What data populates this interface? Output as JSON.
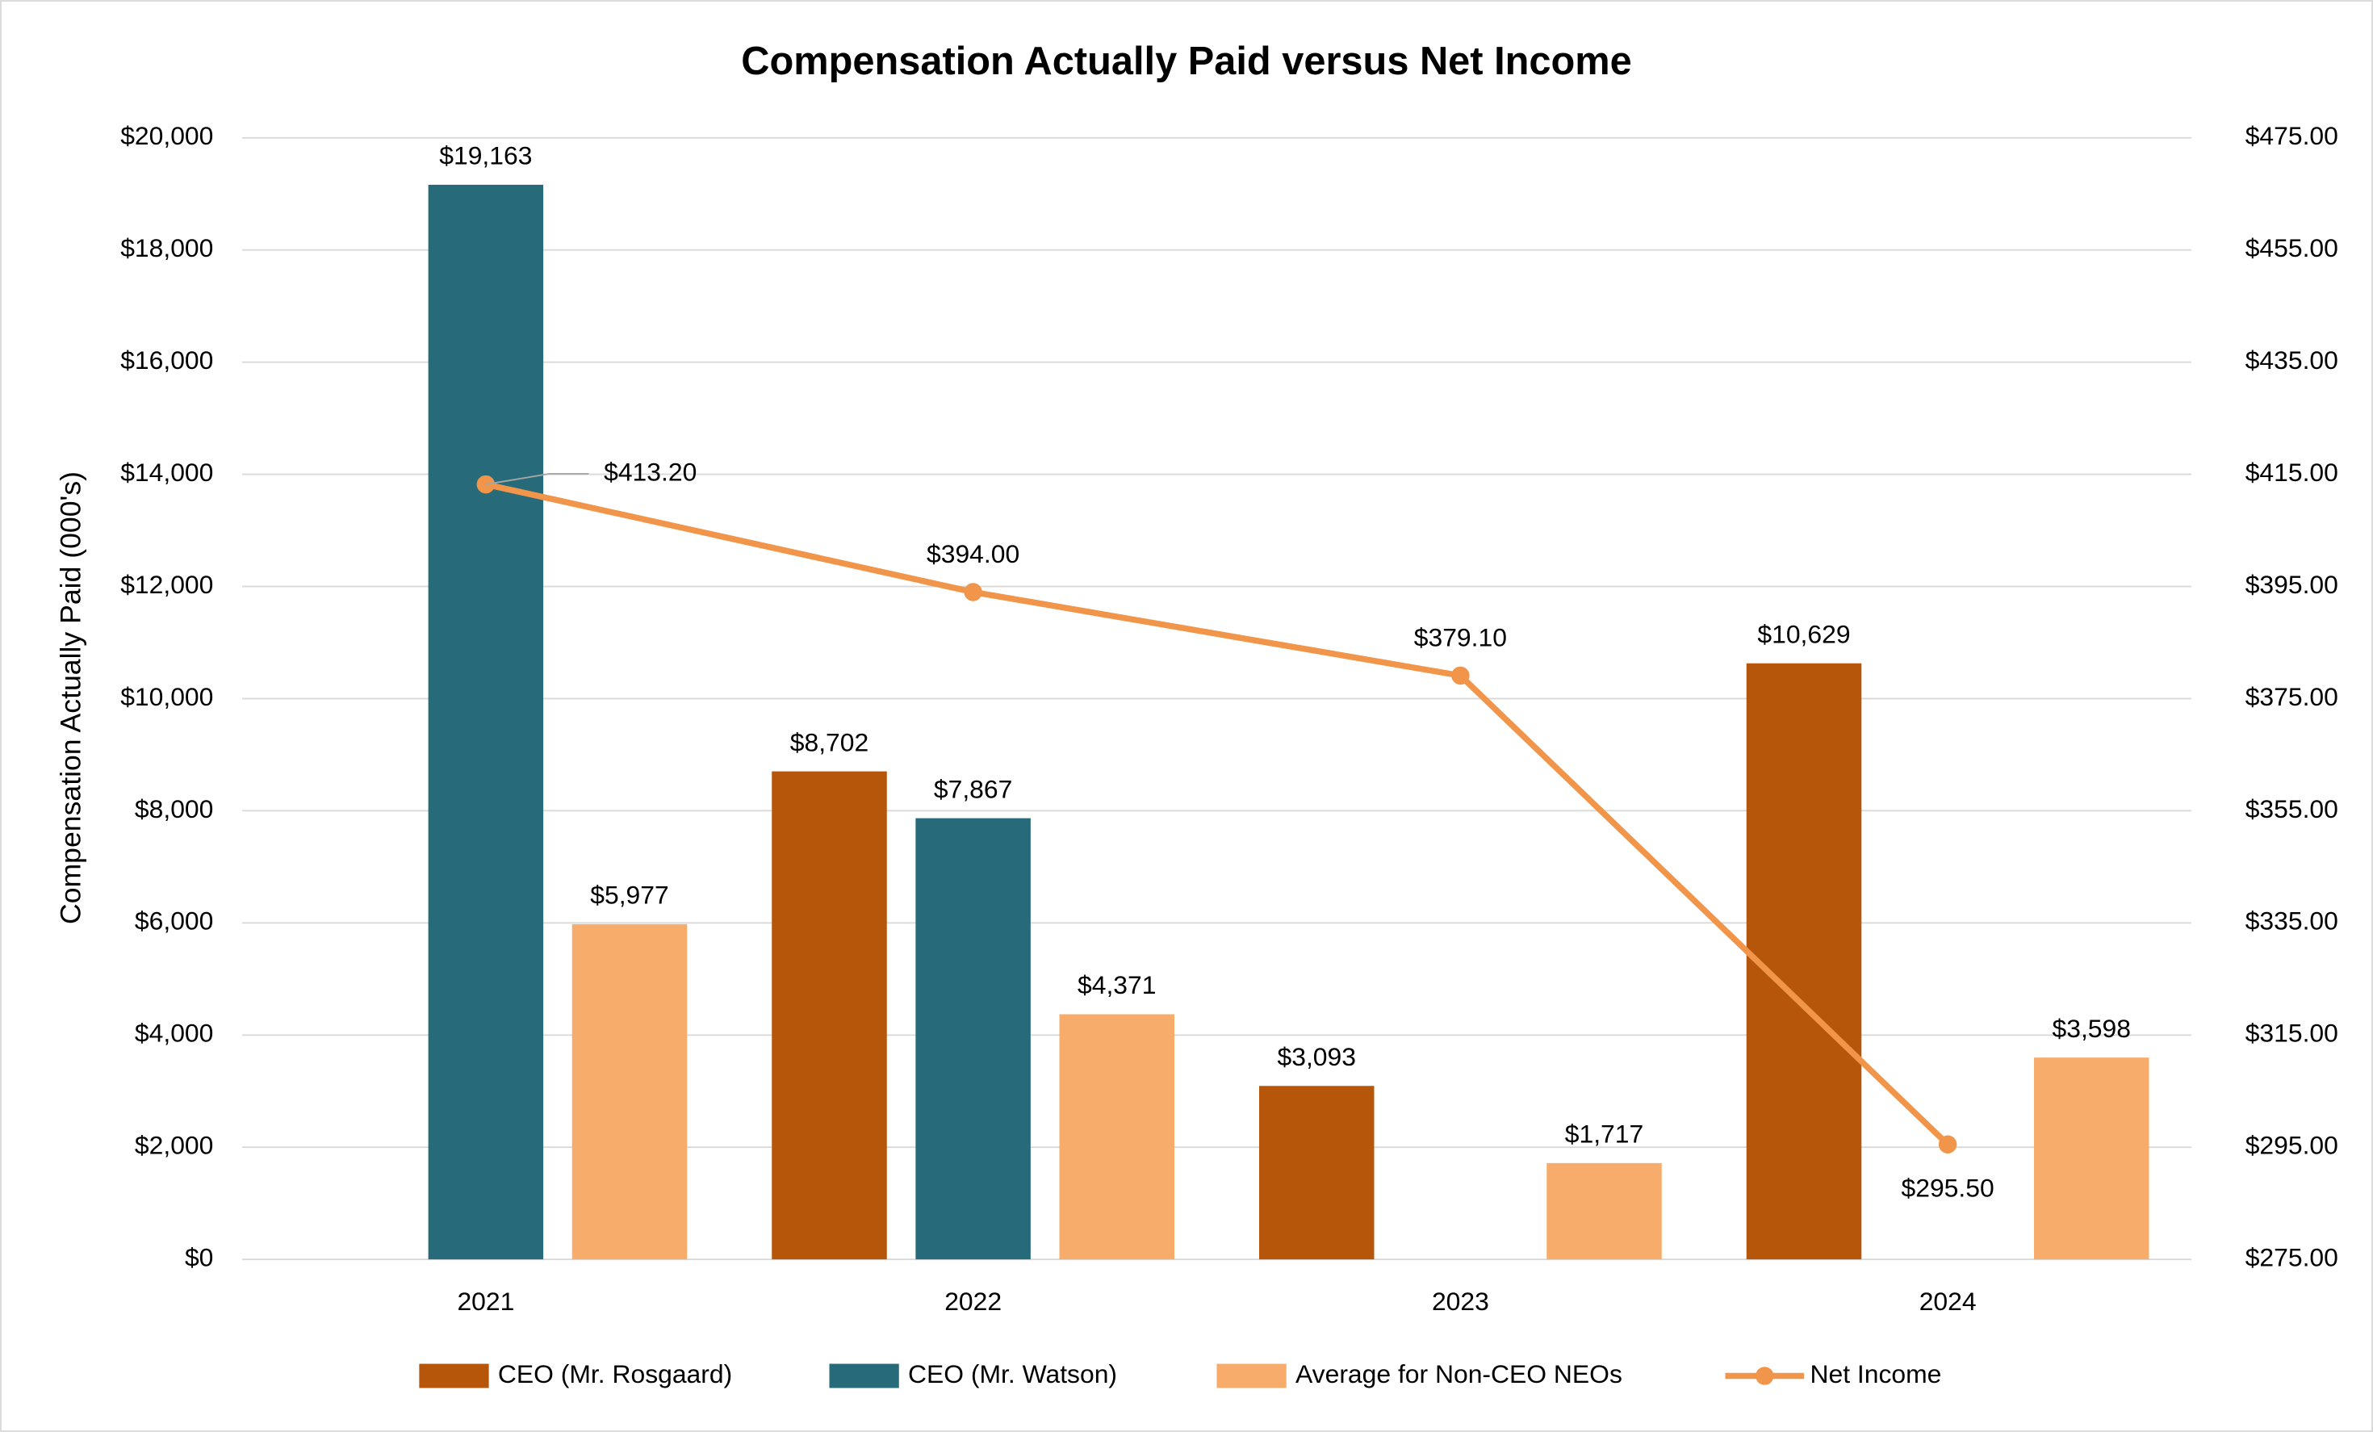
{
  "chart_data": {
    "type": "bar",
    "title": "Compensation Actually Paid versus Net Income",
    "y_label": "Compensation Actually Paid (000's)",
    "categories": [
      "2021",
      "2022",
      "2023",
      "2024"
    ],
    "series": [
      {
        "name": "CEO (Mr. Rosgaard)",
        "color": "#b5560a",
        "values": [
          null,
          8702,
          3093,
          10629
        ],
        "value_labels": [
          null,
          "$8,702",
          "$3,093",
          "$10,629"
        ]
      },
      {
        "name": "CEO (Mr. Watson)",
        "color": "#276b7b",
        "values": [
          19163,
          7867,
          null,
          null
        ],
        "value_labels": [
          "$19,163",
          "$7,867",
          null,
          null
        ]
      },
      {
        "name": "Average for Non-CEO NEOs",
        "color": "#f7ac6b",
        "values": [
          5977,
          4371,
          1717,
          3598
        ],
        "value_labels": [
          "$5,977",
          "$4,371",
          "$1,717",
          "$3,598"
        ]
      },
      {
        "name": "Net Income",
        "type": "line",
        "axis": "y2",
        "color": "#f0954a",
        "values": [
          413.2,
          394.0,
          379.1,
          295.5
        ],
        "value_labels": [
          "$413.20",
          "$394.00",
          "$379.10",
          "$295.50"
        ]
      }
    ],
    "ylim": [
      0,
      20000
    ],
    "yticks": [
      {
        "value": 0,
        "label": "$0"
      },
      {
        "value": 2000,
        "label": "$2,000"
      },
      {
        "value": 4000,
        "label": "$4,000"
      },
      {
        "value": 6000,
        "label": "$6,000"
      },
      {
        "value": 8000,
        "label": "$8,000"
      },
      {
        "value": 10000,
        "label": "$10,000"
      },
      {
        "value": 12000,
        "label": "$12,000"
      },
      {
        "value": 14000,
        "label": "$14,000"
      },
      {
        "value": 16000,
        "label": "$16,000"
      },
      {
        "value": 18000,
        "label": "$18,000"
      },
      {
        "value": 20000,
        "label": "$20,000"
      }
    ],
    "y2lim": [
      275,
      475
    ],
    "y2ticks": [
      {
        "value": 275,
        "label": "$275.00"
      },
      {
        "value": 295,
        "label": "$295.00"
      },
      {
        "value": 315,
        "label": "$315.00"
      },
      {
        "value": 335,
        "label": "$335.00"
      },
      {
        "value": 355,
        "label": "$355.00"
      },
      {
        "value": 375,
        "label": "$375.00"
      },
      {
        "value": 395,
        "label": "$395.00"
      },
      {
        "value": 415,
        "label": "$415.00"
      },
      {
        "value": 435,
        "label": "$435.00"
      },
      {
        "value": 455,
        "label": "$455.00"
      },
      {
        "value": 475,
        "label": "$475.00"
      }
    ],
    "grid": true,
    "legend": "bottom"
  }
}
